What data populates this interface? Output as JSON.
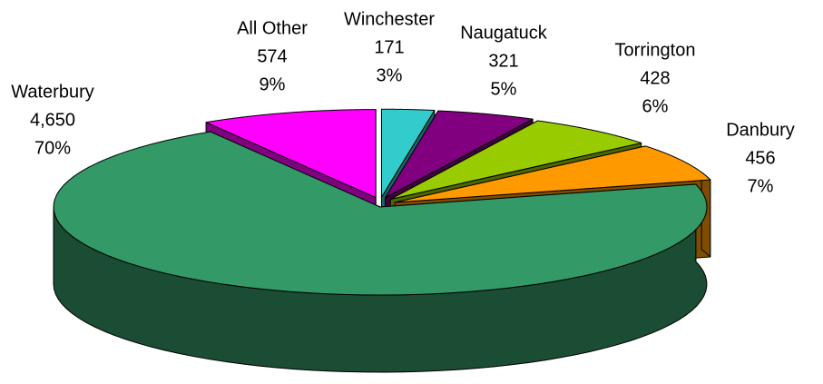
{
  "chart_data": {
    "type": "pie3d",
    "categories": [
      "Winchester",
      "Naugatuck",
      "Torrington",
      "Danbury",
      "Waterbury",
      "All Other"
    ],
    "values": [
      171,
      321,
      428,
      456,
      4650,
      574
    ],
    "value_labels": [
      "171",
      "321",
      "428",
      "456",
      "4,650",
      "574"
    ],
    "percents": [
      3,
      5,
      6,
      7,
      70,
      9
    ],
    "percent_labels": [
      "3%",
      "5%",
      "6%",
      "7%",
      "70%",
      "9%"
    ],
    "colors": [
      "#33cccc",
      "#800080",
      "#99cc00",
      "#ff9900",
      "#339966",
      "#ff00ff"
    ]
  }
}
